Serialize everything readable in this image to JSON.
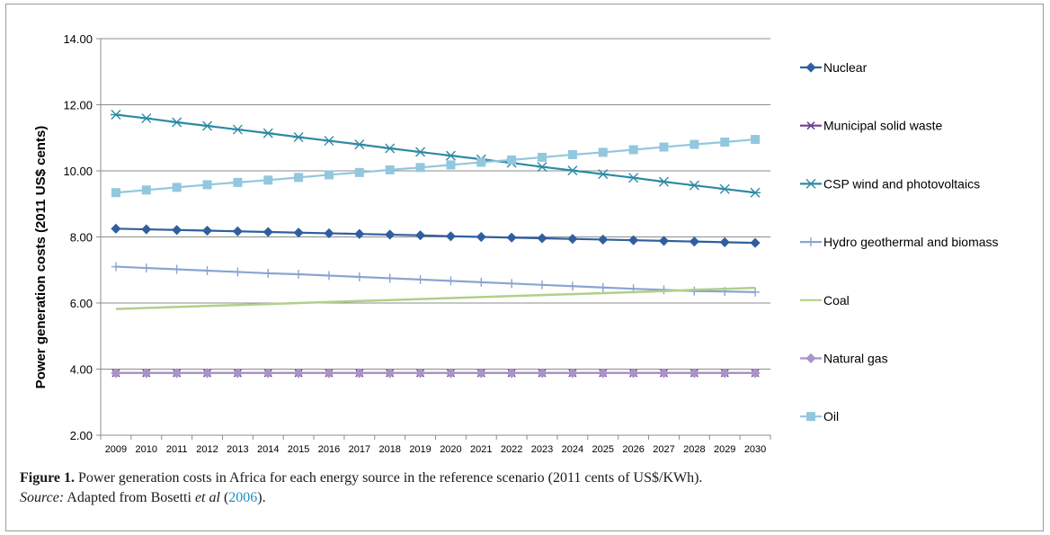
{
  "caption": {
    "figure_label": "Figure 1.",
    "text": "Power generation costs in Africa for each energy source in the reference scenario (2011 cents of US$/KWh).",
    "source_label": "Source:",
    "source_text_before": "Adapted from Bosetti ",
    "source_et_al": "et al",
    "source_open_paren": " (",
    "source_year": "2006",
    "source_close": ")."
  },
  "chart_data": {
    "type": "line",
    "title": "",
    "xlabel": "",
    "ylabel": "Power generation costs (2011 US$ cents)",
    "ylim": [
      2,
      14
    ],
    "yticks": [
      "2.00",
      "4.00",
      "6.00",
      "8.00",
      "10.00",
      "12.00",
      "14.00"
    ],
    "grid": true,
    "legend_position": "right",
    "categories": [
      "2009",
      "2010",
      "2011",
      "2012",
      "2013",
      "2014",
      "2015",
      "2016",
      "2017",
      "2018",
      "2019",
      "2020",
      "2021",
      "2022",
      "2023",
      "2024",
      "2025",
      "2026",
      "2027",
      "2028",
      "2029",
      "2030"
    ],
    "series": [
      {
        "name": "Nuclear",
        "color": "#2f5f9e",
        "marker": "diamond",
        "values": [
          8.25,
          8.23,
          8.21,
          8.19,
          8.17,
          8.15,
          8.13,
          8.11,
          8.09,
          8.07,
          8.05,
          8.02,
          8.0,
          7.98,
          7.96,
          7.94,
          7.92,
          7.9,
          7.88,
          7.86,
          7.84,
          7.82
        ]
      },
      {
        "name": "Municipal solid waste",
        "color": "#6b3f8f",
        "marker": "x",
        "values": [
          3.88,
          3.88,
          3.88,
          3.88,
          3.88,
          3.88,
          3.88,
          3.88,
          3.88,
          3.88,
          3.88,
          3.88,
          3.88,
          3.88,
          3.88,
          3.88,
          3.88,
          3.88,
          3.88,
          3.88,
          3.88,
          3.88
        ]
      },
      {
        "name": "CSP wind and photovoltaics",
        "color": "#2e8aa3",
        "marker": "asterisk",
        "values": [
          11.7,
          11.59,
          11.47,
          11.36,
          11.25,
          11.14,
          11.02,
          10.91,
          10.8,
          10.68,
          10.57,
          10.46,
          10.35,
          10.24,
          10.12,
          10.01,
          9.9,
          9.79,
          9.67,
          9.56,
          9.45,
          9.34
        ]
      },
      {
        "name": "Hydro geothermal and biomass",
        "color": "#8aa4d2",
        "marker": "plus",
        "values": [
          7.1,
          7.06,
          7.02,
          6.98,
          6.94,
          6.9,
          6.87,
          6.83,
          6.79,
          6.75,
          6.71,
          6.67,
          6.63,
          6.59,
          6.55,
          6.51,
          6.47,
          6.43,
          6.4,
          6.36,
          6.35,
          6.33
        ]
      },
      {
        "name": "Coal",
        "color": "#b1cf8a",
        "marker": "none",
        "values": [
          5.82,
          5.85,
          5.88,
          5.91,
          5.94,
          5.97,
          6.0,
          6.03,
          6.06,
          6.09,
          6.12,
          6.15,
          6.18,
          6.21,
          6.24,
          6.27,
          6.3,
          6.33,
          6.36,
          6.4,
          6.43,
          6.46
        ]
      },
      {
        "name": "Natural gas",
        "color": "#a993c7",
        "marker": "diamond",
        "values": [
          3.88,
          3.88,
          3.88,
          3.88,
          3.88,
          3.88,
          3.88,
          3.88,
          3.88,
          3.88,
          3.88,
          3.88,
          3.88,
          3.88,
          3.88,
          3.88,
          3.88,
          3.88,
          3.88,
          3.88,
          3.88,
          3.88
        ]
      },
      {
        "name": "Oil",
        "color": "#92c7de",
        "marker": "square",
        "values": [
          9.34,
          9.42,
          9.5,
          9.58,
          9.65,
          9.72,
          9.8,
          9.88,
          9.95,
          10.03,
          10.1,
          10.18,
          10.26,
          10.33,
          10.41,
          10.49,
          10.56,
          10.64,
          10.72,
          10.8,
          10.87,
          10.95
        ]
      }
    ]
  }
}
